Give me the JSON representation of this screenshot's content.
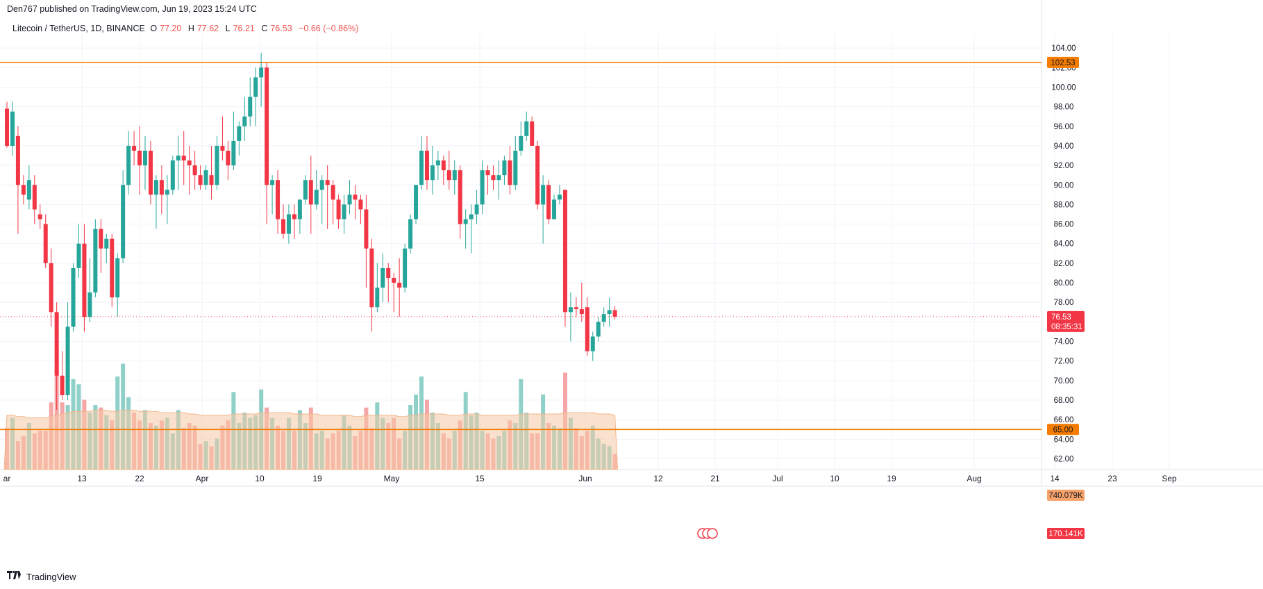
{
  "header": {
    "published": "Den767 published on TradingView.com, Jun 19, 2023 15:24 UTC"
  },
  "legend": {
    "symbol": "Litecoin / TetherUS, 1D, BINANCE",
    "o_label": "O",
    "o_value": "77.20",
    "h_label": "H",
    "h_value": "77.62",
    "l_label": "L",
    "l_value": "76.21",
    "c_label": "C",
    "c_value": "76.53",
    "change": "−0.66 (−0.86%)"
  },
  "footer": {
    "brand": "TradingView",
    "logo_icon": "tradingview-logo-icon"
  },
  "colors": {
    "up": "#26a69a",
    "down": "#f23645",
    "level": "#f57c00",
    "vol_up": "#8fd0c8",
    "vol_down": "#f5a6a6",
    "vol_ma": "#f6c9a6"
  },
  "chart_data": {
    "type": "candlestick",
    "y_ticks": [
      "62.00",
      "64.00",
      "66.00",
      "68.00",
      "70.00",
      "72.00",
      "74.00",
      "76.00",
      "78.00",
      "80.00",
      "82.00",
      "84.00",
      "86.00",
      "88.00",
      "90.00",
      "92.00",
      "94.00",
      "96.00",
      "98.00",
      "100.00",
      "102.00",
      "104.00"
    ],
    "ylim": [
      60.9,
      105.5
    ],
    "x_ticks": [
      "ar",
      "13",
      "22",
      "Apr",
      "10",
      "19",
      "May",
      "15",
      "Jun",
      "12",
      "21",
      "Jul",
      "10",
      "19",
      "Aug",
      "14",
      "23",
      "Sep"
    ],
    "horizontal_levels": [
      {
        "value": 102.53,
        "label": "102.53"
      },
      {
        "value": 65.0,
        "label": "65.00"
      }
    ],
    "last_price": {
      "value": 76.53,
      "label": "76.53",
      "countdown": "08:35:31"
    },
    "volume_ma_label": "740.079K",
    "volume_label": "170.141K",
    "candles": [
      [
        97.8,
        98.5,
        93.8,
        94.0
      ],
      [
        94.0,
        98.5,
        93.0,
        97.5
      ],
      [
        95.0,
        96.0,
        85.0,
        90.0
      ],
      [
        90.0,
        91.0,
        88.0,
        89.0
      ],
      [
        88.5,
        92.0,
        87.5,
        90.5
      ],
      [
        90.0,
        91.0,
        86.0,
        87.5
      ],
      [
        87.0,
        88.0,
        85.5,
        86.5
      ],
      [
        86.0,
        87.0,
        81.5,
        82.0
      ],
      [
        82.0,
        83.5,
        75.5,
        77.0
      ],
      [
        77.0,
        78.0,
        67.0,
        70.5
      ],
      [
        70.5,
        73.0,
        68.0,
        68.5
      ],
      [
        68.5,
        78.0,
        68.0,
        75.5
      ],
      [
        75.5,
        82.0,
        75.0,
        81.5
      ],
      [
        81.5,
        86.0,
        80.5,
        84.0
      ],
      [
        84.0,
        86.0,
        75.0,
        76.5
      ],
      [
        76.5,
        82.5,
        76.0,
        79.0
      ],
      [
        79.0,
        86.5,
        78.5,
        85.5
      ],
      [
        85.5,
        86.5,
        81.0,
        83.5
      ],
      [
        83.5,
        85.0,
        82.0,
        84.5
      ],
      [
        84.5,
        85.0,
        77.5,
        78.5
      ],
      [
        78.5,
        83.0,
        76.5,
        82.5
      ],
      [
        82.5,
        91.5,
        82.0,
        90.0
      ],
      [
        90.0,
        95.5,
        89.0,
        94.0
      ],
      [
        94.0,
        95.5,
        92.0,
        93.5
      ],
      [
        93.5,
        96.0,
        89.0,
        92.0
      ],
      [
        92.0,
        95.0,
        89.5,
        93.5
      ],
      [
        93.5,
        94.5,
        88.0,
        89.0
      ],
      [
        89.0,
        91.0,
        85.5,
        90.5
      ],
      [
        90.5,
        92.0,
        87.0,
        89.0
      ],
      [
        89.0,
        91.0,
        86.0,
        89.5
      ],
      [
        89.5,
        93.0,
        89.0,
        92.5
      ],
      [
        92.5,
        95.0,
        89.5,
        93.0
      ],
      [
        93.0,
        95.5,
        90.0,
        92.5
      ],
      [
        92.5,
        94.0,
        89.0,
        92.0
      ],
      [
        92.0,
        93.5,
        89.5,
        91.0
      ],
      [
        91.0,
        92.0,
        89.5,
        90.0
      ],
      [
        90.0,
        92.0,
        89.5,
        91.5
      ],
      [
        91.0,
        94.0,
        88.5,
        90.0
      ],
      [
        90.0,
        95.0,
        89.5,
        94.0
      ],
      [
        94.0,
        97.0,
        92.5,
        93.5
      ],
      [
        93.5,
        94.5,
        90.5,
        92.0
      ],
      [
        92.0,
        97.5,
        91.5,
        94.5
      ],
      [
        94.5,
        96.5,
        93.0,
        96.0
      ],
      [
        96.0,
        99.0,
        94.5,
        97.0
      ],
      [
        97.0,
        101.0,
        96.0,
        99.0
      ],
      [
        99.0,
        102.0,
        96.0,
        101.0
      ],
      [
        101.0,
        103.5,
        98.0,
        102.0
      ],
      [
        102.0,
        102.5,
        86.0,
        90.0
      ],
      [
        90.0,
        91.0,
        87.0,
        90.5
      ],
      [
        90.5,
        91.5,
        85.0,
        86.5
      ],
      [
        86.5,
        88.0,
        84.5,
        85.0
      ],
      [
        85.0,
        88.0,
        84.0,
        87.0
      ],
      [
        87.0,
        88.0,
        84.5,
        86.5
      ],
      [
        86.5,
        88.5,
        85.0,
        88.5
      ],
      [
        88.5,
        91.0,
        88.0,
        90.5
      ],
      [
        90.5,
        93.0,
        85.0,
        88.0
      ],
      [
        88.0,
        91.5,
        87.5,
        89.5
      ],
      [
        89.5,
        91.0,
        86.0,
        90.5
      ],
      [
        90.5,
        92.0,
        85.5,
        90.0
      ],
      [
        90.0,
        90.5,
        86.0,
        88.5
      ],
      [
        88.5,
        89.0,
        85.5,
        86.5
      ],
      [
        86.5,
        89.0,
        85.0,
        88.0
      ],
      [
        88.0,
        90.5,
        87.0,
        89.0
      ],
      [
        89.0,
        90.0,
        86.5,
        88.5
      ],
      [
        88.5,
        89.0,
        86.0,
        87.5
      ],
      [
        87.5,
        89.0,
        79.5,
        83.5
      ],
      [
        83.5,
        84.5,
        75.0,
        77.5
      ],
      [
        77.5,
        82.0,
        77.0,
        79.5
      ],
      [
        79.5,
        83.0,
        78.0,
        81.5
      ],
      [
        81.5,
        82.0,
        78.0,
        80.5
      ],
      [
        80.5,
        81.0,
        77.0,
        80.0
      ],
      [
        80.0,
        82.5,
        76.5,
        79.5
      ],
      [
        79.5,
        84.0,
        79.0,
        83.5
      ],
      [
        83.5,
        87.0,
        83.0,
        86.5
      ],
      [
        86.5,
        90.0,
        86.0,
        90.0
      ],
      [
        90.0,
        95.0,
        89.5,
        93.5
      ],
      [
        93.5,
        95.0,
        89.5,
        90.5
      ],
      [
        90.5,
        94.0,
        89.0,
        92.0
      ],
      [
        92.0,
        93.5,
        90.5,
        92.5
      ],
      [
        92.5,
        93.0,
        90.0,
        91.5
      ],
      [
        91.5,
        93.5,
        89.5,
        90.5
      ],
      [
        90.5,
        92.5,
        89.0,
        91.5
      ],
      [
        91.5,
        92.0,
        84.5,
        86.0
      ],
      [
        86.0,
        87.5,
        83.5,
        86.5
      ],
      [
        86.5,
        88.0,
        83.0,
        87.0
      ],
      [
        87.0,
        89.5,
        86.0,
        88.0
      ],
      [
        88.0,
        92.5,
        87.0,
        91.5
      ],
      [
        91.5,
        92.0,
        89.0,
        91.0
      ],
      [
        91.0,
        92.0,
        89.5,
        90.5
      ],
      [
        90.5,
        92.5,
        88.5,
        91.0
      ],
      [
        91.0,
        93.0,
        90.0,
        92.5
      ],
      [
        92.5,
        94.0,
        89.0,
        90.0
      ],
      [
        90.0,
        95.0,
        89.5,
        93.5
      ],
      [
        93.5,
        96.5,
        93.0,
        95.0
      ],
      [
        95.0,
        97.5,
        94.5,
        96.5
      ],
      [
        96.5,
        97.0,
        94.0,
        94.0
      ],
      [
        94.0,
        94.5,
        87.5,
        88.0
      ],
      [
        88.0,
        91.0,
        84.0,
        90.0
      ],
      [
        90.0,
        90.5,
        86.0,
        86.5
      ],
      [
        86.5,
        89.0,
        86.5,
        88.5
      ],
      [
        88.5,
        90.0,
        88.0,
        89.0
      ],
      [
        89.5,
        89.5,
        75.5,
        77.0
      ],
      [
        77.0,
        79.0,
        74.0,
        77.5
      ],
      [
        77.5,
        78.5,
        76.5,
        77.3
      ],
      [
        77.3,
        80.0,
        76.0,
        76.8
      ],
      [
        77.5,
        78.5,
        72.5,
        73.0
      ],
      [
        73.0,
        75.0,
        72.0,
        74.5
      ],
      [
        74.5,
        76.5,
        74.0,
        76.0
      ],
      [
        76.0,
        77.5,
        75.5,
        76.8
      ],
      [
        76.8,
        78.5,
        75.5,
        77.2
      ],
      [
        77.2,
        77.62,
        76.21,
        76.53
      ]
    ],
    "volume_pct": [
      32,
      40,
      22,
      26,
      36,
      28,
      30,
      30,
      52,
      78,
      52,
      50,
      70,
      66,
      54,
      44,
      50,
      48,
      42,
      38,
      72,
      82,
      56,
      44,
      38,
      46,
      36,
      34,
      38,
      40,
      28,
      46,
      32,
      36,
      34,
      20,
      22,
      18,
      24,
      34,
      38,
      60,
      36,
      44,
      40,
      42,
      62,
      48,
      40,
      34,
      30,
      40,
      30,
      46,
      36,
      48,
      28,
      30,
      24,
      28,
      30,
      42,
      34,
      26,
      30,
      48,
      32,
      52,
      40,
      36,
      40,
      24,
      30,
      50,
      58,
      72,
      54,
      44,
      36,
      28,
      24,
      30,
      38,
      60,
      42,
      44,
      30,
      28,
      24,
      26,
      30,
      38,
      36,
      70,
      44,
      28,
      28,
      58,
      36,
      34,
      32,
      75,
      40,
      32,
      26,
      30,
      34,
      24,
      20,
      18,
      12
    ],
    "volume_ma_pct": [
      42,
      42,
      41,
      41,
      40,
      40,
      40,
      40,
      41,
      42,
      43,
      44,
      45,
      45,
      45,
      45,
      46,
      46,
      46,
      45,
      45,
      46,
      46,
      46,
      45,
      45,
      45,
      45,
      44,
      44,
      44,
      44,
      44,
      43,
      43,
      42,
      42,
      42,
      42,
      42,
      42,
      43,
      43,
      43,
      43,
      43,
      44,
      44,
      44,
      44,
      44,
      44,
      43,
      43,
      43,
      43,
      43,
      42,
      42,
      42,
      42,
      42,
      42,
      41,
      41,
      42,
      42,
      42,
      42,
      42,
      42,
      41,
      41,
      42,
      42,
      43,
      43,
      43,
      43,
      43,
      42,
      42,
      42,
      43,
      43,
      43,
      42,
      42,
      42,
      42,
      42,
      42,
      42,
      43,
      43,
      43,
      43,
      43,
      43,
      43,
      43,
      44,
      44,
      44,
      44,
      44,
      44,
      43,
      43,
      43,
      42
    ]
  }
}
